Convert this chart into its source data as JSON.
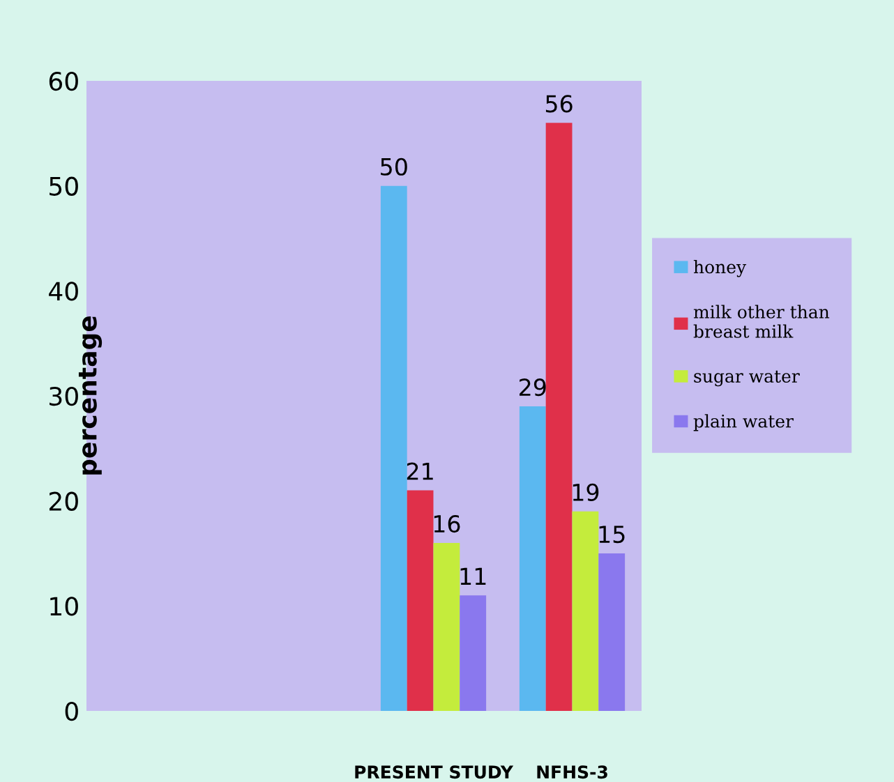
{
  "chart_data": {
    "type": "bar",
    "ylabel": "percentage",
    "categories": [
      null,
      null,
      "PRESENT STUDY",
      "NFHS-3"
    ],
    "series": [
      {
        "name": "honey",
        "color": "#5bb8f0",
        "values": [
          null,
          null,
          50,
          29
        ]
      },
      {
        "name": "milk other than breast milk",
        "color": "#e0304a",
        "values": [
          null,
          null,
          21,
          56
        ]
      },
      {
        "name": "sugar water",
        "color": "#c4ec3c",
        "values": [
          null,
          null,
          16,
          19
        ]
      },
      {
        "name": "plain water",
        "color": "#8a78ee",
        "values": [
          null,
          null,
          11,
          15
        ]
      }
    ],
    "ylim": [
      0,
      60
    ],
    "yticks": [
      0,
      10,
      20,
      30,
      40,
      50,
      60
    ],
    "data_labels": true,
    "grid": false,
    "legend": "right"
  }
}
